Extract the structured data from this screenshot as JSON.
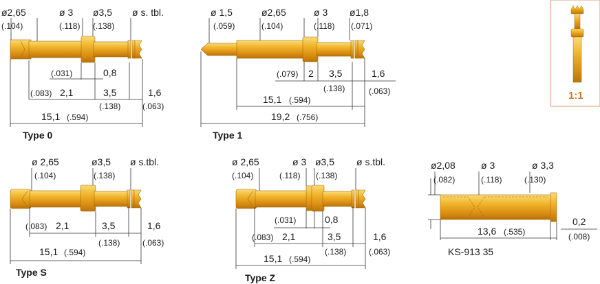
{
  "types": [
    {
      "title": "Type 0",
      "top": [
        "ø2,65",
        "ø 3",
        "ø3,5",
        "ø s. tbl."
      ],
      "top_in": [
        "(.104)",
        "(.118)",
        "(.138)"
      ],
      "dims": [
        "(.031)",
        "0,8",
        "(.083)",
        "2,1",
        "3,5",
        "1,6",
        "(.138)",
        "(.063)",
        "15,1",
        "(.594)"
      ]
    },
    {
      "title": "Type 1",
      "top": [
        "ø 1,5",
        "ø2,65",
        "ø 3",
        "ø1,8"
      ],
      "top_in": [
        "(.059)",
        "(.104)",
        "(.118)",
        "(.071)"
      ],
      "dims": [
        "(.079)",
        "2",
        "3,5",
        "1,6",
        "(.138)",
        "(.063)",
        "15,1",
        "(.594)",
        "19,2",
        "(.756)"
      ]
    },
    {
      "title": "Type S",
      "top": [
        "ø 2,65",
        "ø3,5",
        "ø s.tbl."
      ],
      "top_in": [
        "(.104)",
        "(.138)"
      ],
      "dims": [
        "(.083)",
        "2,1",
        "3,5",
        "1,6",
        "(.138)",
        "(.063)",
        "15,1",
        "(.594)"
      ]
    },
    {
      "title": "Type Z",
      "top": [
        "ø 2,65",
        "ø 3",
        "ø3,5",
        "ø s.tbl."
      ],
      "top_in": [
        "(.104)",
        "(.118)",
        "(.138)"
      ],
      "dims": [
        "(.031)",
        "0,8",
        "(.083)",
        "2,1",
        "3,5",
        "1,6",
        "(.138)",
        "(.063)",
        "15,1",
        "(.594)"
      ]
    }
  ],
  "receptacle": {
    "top": [
      "ø2,08",
      "ø 3",
      "ø 3,3"
    ],
    "top_in": [
      "(.082)",
      "(.118)",
      "(.130)"
    ],
    "dims": [
      "13,6",
      "(.535)",
      "0,2",
      "(.008)"
    ],
    "part": "KS-913 35"
  },
  "scale_badge": "1:1",
  "colors": {
    "gold": "#e8a21a",
    "gold_light": "#f7cf5c",
    "gold_dark": "#b2720a",
    "badge_border": "#e0a888",
    "badge_text": "#c9772f"
  }
}
